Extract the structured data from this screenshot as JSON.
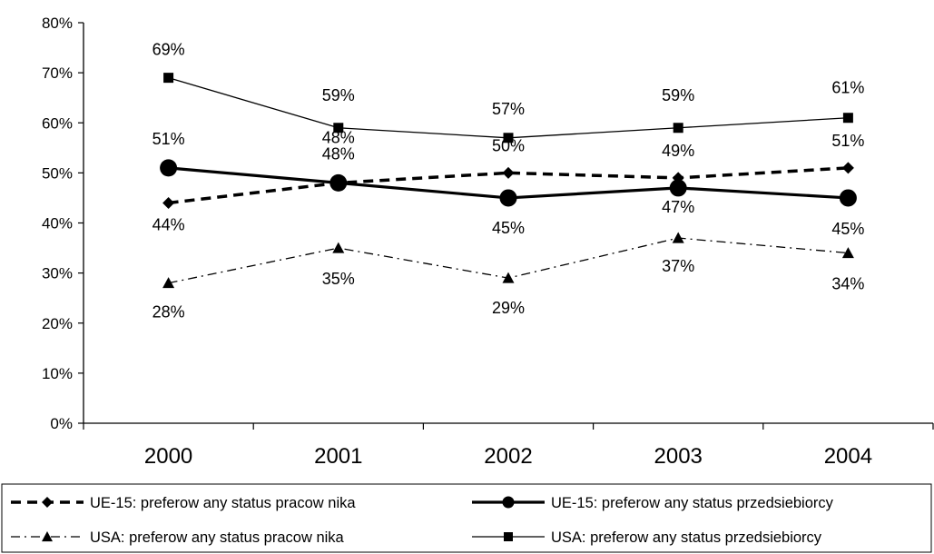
{
  "chart_data": {
    "type": "line",
    "categories": [
      "2000",
      "2001",
      "2002",
      "2003",
      "2004"
    ],
    "ylim": [
      0,
      80
    ],
    "yticks": [
      "0%",
      "10%",
      "20%",
      "30%",
      "40%",
      "50%",
      "60%",
      "70%",
      "80%"
    ],
    "grid": false,
    "legend_position": "bottom",
    "series": [
      {
        "name": "UE-15: preferow any status pracow nika",
        "values": [
          44,
          48,
          50,
          49,
          51
        ],
        "labels": [
          "44%",
          "48%",
          "50%",
          "49%",
          "51%"
        ],
        "marker": "diamond",
        "line_style": "dashed-thick"
      },
      {
        "name": "UE-15: preferow any status przedsiebiorcy",
        "values": [
          51,
          48,
          45,
          47,
          45
        ],
        "labels": [
          "51%",
          "48%",
          "45%",
          "47%",
          "45%"
        ],
        "marker": "circle",
        "line_style": "solid-thick"
      },
      {
        "name": "USA: preferow any status pracow nika",
        "values": [
          28,
          35,
          29,
          37,
          34
        ],
        "labels": [
          "28%",
          "35%",
          "29%",
          "37%",
          "34%"
        ],
        "marker": "triangle",
        "line_style": "dash-dot"
      },
      {
        "name": "USA: preferow any status przedsiebiorcy",
        "values": [
          69,
          59,
          57,
          59,
          61
        ],
        "labels": [
          "69%",
          "59%",
          "57%",
          "59%",
          "61%"
        ],
        "marker": "square",
        "line_style": "solid-thin"
      }
    ]
  }
}
